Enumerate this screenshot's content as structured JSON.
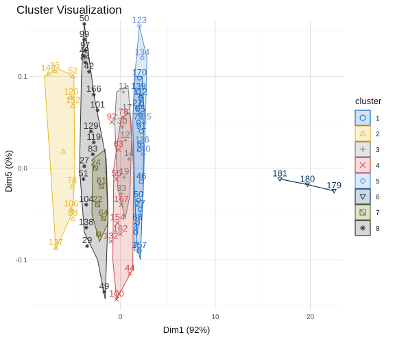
{
  "chart_data": {
    "type": "scatter",
    "title": "Cluster Visualization",
    "xlabel": "Dim1 (92%)",
    "ylabel": "Dim5 (0%)",
    "xlim": [
      -9.5,
      23.5
    ],
    "ylim": [
      -0.155,
      0.16
    ],
    "x_ticks": [
      0,
      10,
      20
    ],
    "x_tick_labels": [
      "0",
      "10",
      "20"
    ],
    "y_ticks": [
      -0.1,
      0.0,
      0.1
    ],
    "y_tick_labels": [
      "-0.1",
      "0.0",
      "0.1"
    ],
    "grid": true,
    "legend": {
      "title": "cluster",
      "position": "right",
      "labels": [
        "1",
        "2",
        "3",
        "4",
        "5",
        "6",
        "7",
        "8"
      ]
    },
    "series": [
      {
        "name": "1",
        "color": "#1565c0",
        "marker": "circle",
        "hull": [
          [
            2.3,
            0.1
          ],
          [
            2.5,
            0.06
          ],
          [
            2.4,
            -0.02
          ],
          [
            2.1,
            -0.1
          ],
          [
            1.7,
            -0.08
          ],
          [
            1.5,
            -0.02
          ],
          [
            1.3,
            0.05
          ],
          [
            1.5,
            0.1
          ],
          [
            2.0,
            0.1
          ]
        ],
        "points": [
          {
            "x": 2.0,
            "y": 0.098,
            "label": "170"
          },
          {
            "x": 1.9,
            "y": 0.083,
            "label": "139"
          },
          {
            "x": 2.1,
            "y": 0.077,
            "label": "112"
          },
          {
            "x": 2.2,
            "y": 0.07,
            "label": "5"
          },
          {
            "x": 1.8,
            "y": 0.065,
            "label": "21"
          },
          {
            "x": 2.1,
            "y": 0.058,
            "label": "55"
          },
          {
            "x": 1.9,
            "y": 0.05,
            "label": "71"
          },
          {
            "x": 2.2,
            "y": 0.04,
            "label": "91"
          },
          {
            "x": 2.0,
            "y": 0.02,
            "label": "6"
          },
          {
            "x": 2.2,
            "y": -0.015,
            "label": "46"
          },
          {
            "x": 1.9,
            "y": -0.035,
            "label": "50"
          },
          {
            "x": 2.1,
            "y": -0.045,
            "label": "27"
          },
          {
            "x": 1.8,
            "y": -0.06,
            "label": "68"
          },
          {
            "x": 2.0,
            "y": -0.09,
            "label": "157"
          },
          {
            "x": 1.6,
            "y": -0.07,
            "label": "3"
          }
        ]
      },
      {
        "name": "2",
        "color": "#e8b923",
        "marker": "triangle",
        "hull": [
          [
            -7.6,
            0.103
          ],
          [
            -6.5,
            0.108
          ],
          [
            -4.9,
            0.1
          ],
          [
            -4.8,
            0.0
          ],
          [
            -5.0,
            -0.048
          ],
          [
            -6.8,
            -0.088
          ],
          [
            -8.0,
            0.1
          ]
        ],
        "points": [
          {
            "x": -7.6,
            "y": 0.103,
            "label": "142"
          },
          {
            "x": -6.9,
            "y": 0.106,
            "label": "26"
          },
          {
            "x": -5.0,
            "y": 0.1,
            "label": "52"
          },
          {
            "x": -5.2,
            "y": 0.077,
            "label": "120"
          },
          {
            "x": -5.0,
            "y": 0.068,
            "label": "152"
          },
          {
            "x": -5.1,
            "y": -0.02,
            "label": "78"
          },
          {
            "x": -5.2,
            "y": -0.045,
            "label": "106"
          },
          {
            "x": -5.0,
            "y": -0.055,
            "label": "88"
          },
          {
            "x": -6.8,
            "y": -0.087,
            "label": "137"
          },
          {
            "x": -6.0,
            "y": 0.018,
            "label": ""
          }
        ]
      },
      {
        "name": "3",
        "color": "#7a7a7a",
        "marker": "plus-triangle",
        "hull": [
          [
            -0.4,
            0.083
          ],
          [
            0.8,
            0.09
          ],
          [
            1.2,
            0.04
          ],
          [
            1.0,
            -0.03
          ],
          [
            0.5,
            -0.055
          ],
          [
            -0.3,
            -0.02
          ],
          [
            -0.6,
            0.05
          ]
        ],
        "points": [
          {
            "x": 0.3,
            "y": 0.083,
            "label": "11"
          },
          {
            "x": 0.7,
            "y": 0.06,
            "label": "17"
          },
          {
            "x": 0.2,
            "y": 0.045,
            "label": "30"
          },
          {
            "x": 0.5,
            "y": 0.03,
            "label": "12"
          },
          {
            "x": 0.9,
            "y": 0.01,
            "label": "14"
          },
          {
            "x": 0.4,
            "y": -0.01,
            "label": "19"
          },
          {
            "x": 0.1,
            "y": -0.028,
            "label": "33"
          }
        ]
      },
      {
        "name": "4",
        "color": "#d04a4a",
        "marker": "cross-square",
        "hull": [
          [
            0.1,
            0.055
          ],
          [
            1.0,
            0.06
          ],
          [
            1.4,
            0.0
          ],
          [
            1.3,
            -0.11
          ],
          [
            -0.4,
            -0.143
          ],
          [
            -0.8,
            -0.1
          ],
          [
            -0.7,
            0.0
          ]
        ],
        "points": [
          {
            "x": -0.9,
            "y": 0.05,
            "label": "92"
          },
          {
            "x": 0.3,
            "y": 0.055,
            "label": "78"
          },
          {
            "x": -0.2,
            "y": 0.02,
            "label": "63"
          },
          {
            "x": -0.4,
            "y": -0.012,
            "label": "55"
          },
          {
            "x": 0.1,
            "y": -0.04,
            "label": "167"
          },
          {
            "x": -0.3,
            "y": -0.06,
            "label": "154"
          },
          {
            "x": 0.0,
            "y": -0.072,
            "label": "162"
          },
          {
            "x": -1.0,
            "y": -0.08,
            "label": "132"
          },
          {
            "x": 1.0,
            "y": -0.115,
            "label": "44"
          },
          {
            "x": -0.4,
            "y": -0.143,
            "label": "100"
          }
        ]
      },
      {
        "name": "5",
        "color": "#5b8fd6",
        "marker": "diamond",
        "hull": [
          [
            2.0,
            0.155
          ],
          [
            2.8,
            0.12
          ],
          [
            2.6,
            0.04
          ],
          [
            2.4,
            -0.03
          ],
          [
            1.5,
            -0.09
          ],
          [
            1.3,
            0.05
          ],
          [
            1.6,
            0.11
          ]
        ],
        "points": [
          {
            "x": 2.0,
            "y": 0.155,
            "label": "123"
          },
          {
            "x": 2.3,
            "y": 0.12,
            "label": "134"
          },
          {
            "x": 2.5,
            "y": 0.05,
            "label": "105"
          },
          {
            "x": 2.3,
            "y": 0.025,
            "label": "116"
          },
          {
            "x": 2.4,
            "y": 0.015,
            "label": "140"
          },
          {
            "x": 1.8,
            "y": -0.09,
            "label": "45"
          }
        ]
      },
      {
        "name": "6",
        "color": "#0d3a63",
        "marker": "inverted-triangle",
        "hull": [
          [
            16.8,
            -0.012
          ],
          [
            19.7,
            -0.018
          ],
          [
            22.5,
            -0.025
          ]
        ],
        "points": [
          {
            "x": 16.8,
            "y": -0.012,
            "label": "181"
          },
          {
            "x": 19.7,
            "y": -0.018,
            "label": "180"
          },
          {
            "x": 22.5,
            "y": -0.025,
            "label": "179"
          }
        ]
      },
      {
        "name": "7",
        "color": "#6b6b1e",
        "marker": "square-cross",
        "hull": [
          [
            -2.9,
            0.01
          ],
          [
            -1.6,
            0.02
          ],
          [
            -1.3,
            -0.06
          ],
          [
            -2.2,
            -0.08
          ],
          [
            -3.0,
            -0.05
          ]
        ],
        "points": [
          {
            "x": -2.6,
            "y": 0.0,
            "label": "24"
          },
          {
            "x": -2.0,
            "y": -0.02,
            "label": "61"
          },
          {
            "x": -2.4,
            "y": -0.04,
            "label": "22"
          },
          {
            "x": -1.8,
            "y": -0.055,
            "label": "64"
          },
          {
            "x": -2.3,
            "y": -0.072,
            "label": ""
          }
        ]
      },
      {
        "name": "8",
        "color": "#333333",
        "marker": "asterisk",
        "hull": [
          [
            -3.8,
            0.157
          ],
          [
            -2.7,
            0.075
          ],
          [
            -1.5,
            0.01
          ],
          [
            -1.3,
            -0.05
          ],
          [
            -1.6,
            -0.143
          ],
          [
            -2.4,
            -0.1
          ],
          [
            -3.8,
            -0.07
          ],
          [
            -4.3,
            0.0
          ],
          [
            -4.1,
            0.1
          ]
        ],
        "points": [
          {
            "x": -3.8,
            "y": 0.157,
            "label": "50"
          },
          {
            "x": -3.8,
            "y": 0.14,
            "label": "99"
          },
          {
            "x": -3.7,
            "y": 0.128,
            "label": "97"
          },
          {
            "x": -3.8,
            "y": 0.122,
            "label": "43"
          },
          {
            "x": -3.7,
            "y": 0.115,
            "label": "84"
          },
          {
            "x": -3.3,
            "y": 0.105,
            "label": "42"
          },
          {
            "x": -2.8,
            "y": 0.08,
            "label": "166"
          },
          {
            "x": -2.4,
            "y": 0.063,
            "label": "101"
          },
          {
            "x": -3.1,
            "y": 0.04,
            "label": "129"
          },
          {
            "x": -2.8,
            "y": 0.028,
            "label": "119"
          },
          {
            "x": -2.9,
            "y": 0.015,
            "label": "83"
          },
          {
            "x": -3.8,
            "y": 0.002,
            "label": "27"
          },
          {
            "x": -3.9,
            "y": -0.012,
            "label": "51"
          },
          {
            "x": -3.6,
            "y": -0.04,
            "label": "104"
          },
          {
            "x": -3.6,
            "y": -0.065,
            "label": "138"
          },
          {
            "x": -3.5,
            "y": -0.085,
            "label": "29"
          },
          {
            "x": -1.7,
            "y": -0.135,
            "label": "49"
          }
        ]
      }
    ]
  }
}
